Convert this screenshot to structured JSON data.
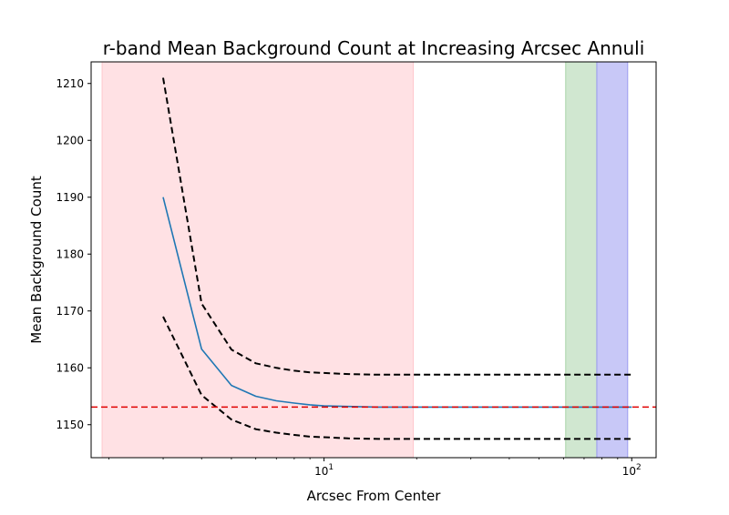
{
  "chart_data": {
    "type": "line",
    "title": "r-band Mean Background Count at Increasing Arcsec Annuli",
    "xlabel": "Arcsec From Center",
    "ylabel": "Mean Background Count",
    "xscale": "log",
    "xlim": [
      1.75,
      120
    ],
    "ylim": [
      1144.2,
      1213.8
    ],
    "x_ticks": [
      {
        "value": 10,
        "base": "10",
        "exp": "1"
      },
      {
        "value": 100,
        "base": "10",
        "exp": "2"
      }
    ],
    "y_ticks": [
      1150,
      1160,
      1170,
      1180,
      1190,
      1200,
      1210
    ],
    "grid": false,
    "legend": "none",
    "shaded_regions": [
      {
        "x0": 1.9,
        "x1": 19.5,
        "color": "#ffc8cd"
      },
      {
        "x0": 61,
        "x1": 77,
        "color": "#a9d4a9"
      },
      {
        "x0": 77,
        "x1": 97,
        "color": "#9a9af0"
      }
    ],
    "series": [
      {
        "style": "solid",
        "color": "#1f77b4",
        "x": [
          3,
          4,
          5,
          6,
          7,
          8,
          9,
          10,
          12,
          15,
          20,
          30,
          50,
          100
        ],
        "y": [
          1190,
          1163.3,
          1156.9,
          1155.0,
          1154.2,
          1153.8,
          1153.5,
          1153.3,
          1153.2,
          1153.1,
          1153.1,
          1153.1,
          1153.1,
          1153.1
        ]
      },
      {
        "style": "dashed",
        "color": "#000000",
        "x": [
          3,
          4,
          5,
          6,
          7,
          8,
          9,
          10,
          12,
          15,
          20,
          30,
          50,
          100
        ],
        "y": [
          1211,
          1171.3,
          1163.2,
          1160.8,
          1160.0,
          1159.5,
          1159.2,
          1159.1,
          1158.9,
          1158.8,
          1158.8,
          1158.8,
          1158.8,
          1158.8
        ]
      },
      {
        "style": "dashed",
        "color": "#000000",
        "x": [
          3,
          4,
          5,
          6,
          7,
          8,
          9,
          10,
          12,
          15,
          20,
          30,
          50,
          100
        ],
        "y": [
          1169,
          1155.2,
          1150.9,
          1149.2,
          1148.6,
          1148.2,
          1147.9,
          1147.8,
          1147.6,
          1147.5,
          1147.5,
          1147.5,
          1147.5,
          1147.5
        ]
      }
    ],
    "hlines": [
      {
        "y": 1153.1,
        "color": "#e00000",
        "style": "dashed"
      }
    ]
  }
}
